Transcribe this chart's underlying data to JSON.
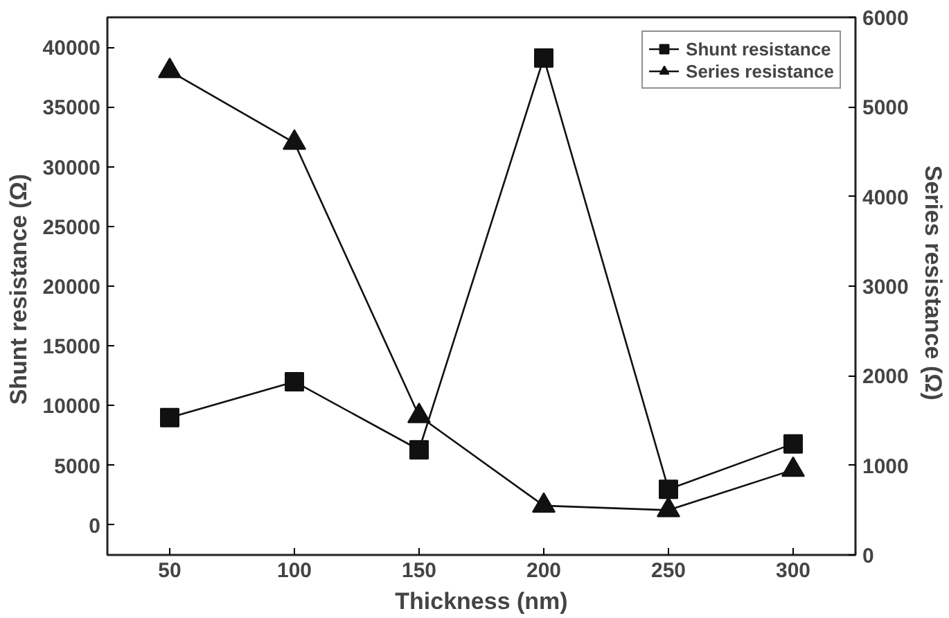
{
  "chart_data": {
    "type": "line",
    "xlabel": "Thickness (nm)",
    "ylabel": "Shunt resistance  (Ω)",
    "y2label": "Series resistance  (Ω)",
    "x": [
      50,
      100,
      150,
      200,
      250,
      300
    ],
    "xlim": [
      25,
      325
    ],
    "xticks": [
      50,
      100,
      150,
      200,
      250,
      300
    ],
    "ylim": [
      -2500,
      42500
    ],
    "yticks": [
      0,
      5000,
      10000,
      15000,
      20000,
      25000,
      30000,
      35000,
      40000
    ],
    "y2lim": [
      0,
      6000
    ],
    "y2ticks": [
      0,
      1000,
      2000,
      3000,
      4000,
      5000,
      6000
    ],
    "grid": false,
    "legend": "top right",
    "line_style": "solid",
    "series": [
      {
        "name": "Shunt resistance",
        "color": "#111111",
        "marker": "square",
        "values": [
          9000,
          12000,
          6300,
          39100,
          3000,
          6800
        ]
      },
      {
        "name": "Series resistance",
        "color": "#111111",
        "marker": "triangle",
        "axis": "y2",
        "values": [
          5400,
          4600,
          1550,
          550,
          500,
          950
        ]
      }
    ]
  }
}
